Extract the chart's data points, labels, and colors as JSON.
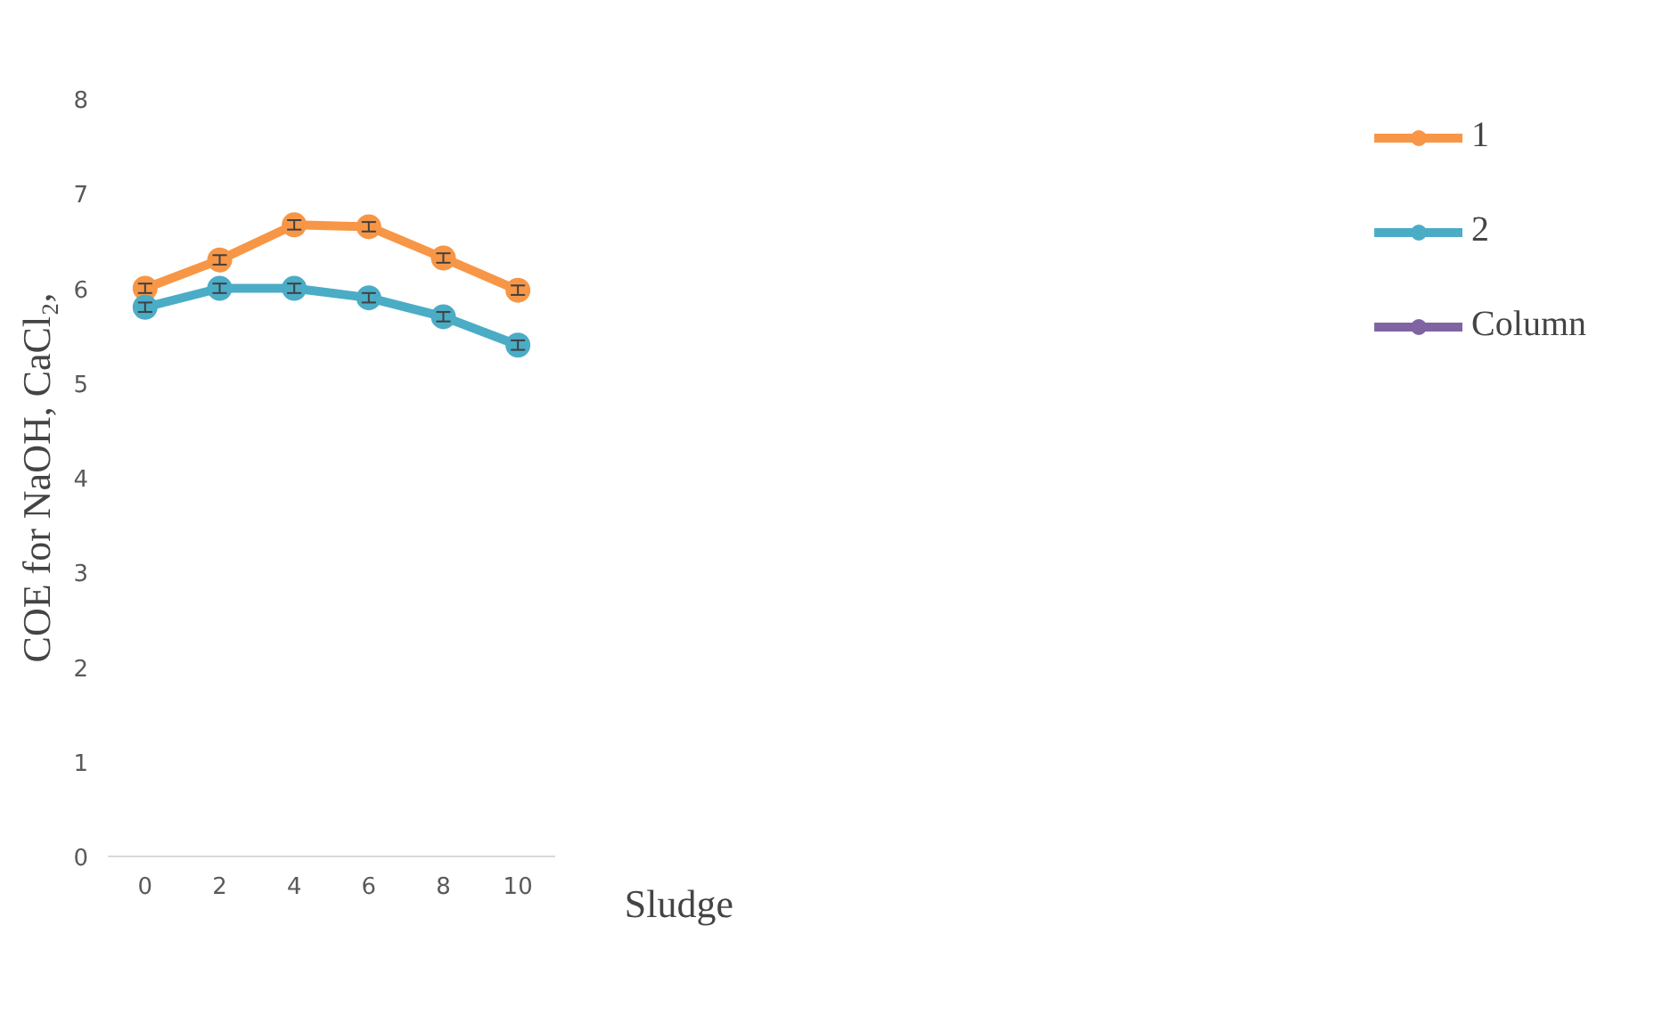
{
  "chart_data": {
    "type": "line",
    "xlabel": "Sludge",
    "ylabel": "COE for NaOH, CaCl₂,",
    "categories": [
      "0",
      "2",
      "4",
      "6",
      "8",
      "10"
    ],
    "series": [
      {
        "name": "1",
        "color": "#f79646",
        "values": [
          6.0,
          6.3,
          6.67,
          6.65,
          6.32,
          5.98
        ],
        "errors": [
          0.05,
          0.05,
          0.05,
          0.05,
          0.05,
          0.05
        ]
      },
      {
        "name": "2",
        "color": "#4bacc6",
        "values": [
          5.8,
          6.0,
          6.0,
          5.9,
          5.7,
          5.4
        ],
        "errors": [
          0.05,
          0.05,
          0.05,
          0.05,
          0.05,
          0.05
        ]
      },
      {
        "name": "Column",
        "color": "#8064a2",
        "values": [
          null,
          null,
          null,
          null,
          null,
          null
        ]
      }
    ],
    "ylim": [
      0,
      8
    ],
    "yticks": [
      0,
      1,
      2,
      3,
      4,
      5,
      6,
      7,
      8
    ],
    "grid": false,
    "legend": "right",
    "marker": "circle",
    "line_style": "solid"
  }
}
